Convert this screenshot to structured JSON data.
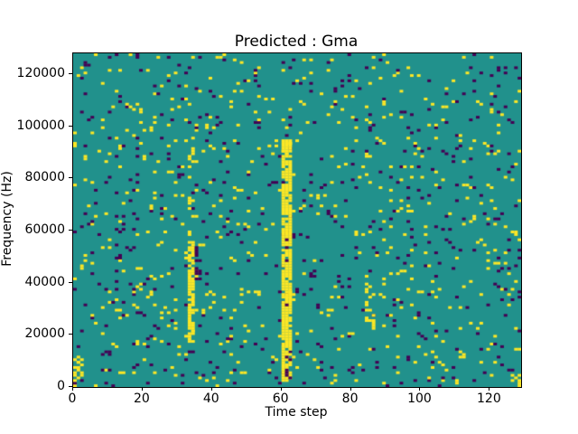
{
  "chart_data": {
    "type": "heatmap",
    "title": "Predicted : Gma",
    "xlabel": "Time step",
    "ylabel": "Frequency (Hz)",
    "xlim": [
      0,
      129
    ],
    "ylim": [
      0,
      128000
    ],
    "nx": 129,
    "ny": 128,
    "axes_rect": [
      80,
      58,
      496,
      369
    ],
    "xticks": [
      0,
      20,
      40,
      60,
      80,
      100,
      120
    ],
    "xtick_labels": [
      "0",
      "20",
      "40",
      "60",
      "80",
      "100",
      "120"
    ],
    "yticks": [
      0,
      20000,
      40000,
      60000,
      80000,
      100000,
      120000
    ],
    "ytick_labels": [
      "0",
      "20000",
      "40000",
      "60000",
      "80000",
      "100000",
      "120000"
    ],
    "legend": "none",
    "grid": "off",
    "colors": {
      "teal": "#21918c",
      "yellow": "#fde725",
      "purple": "#440154",
      "spine": "#000000",
      "text": "#000000",
      "background": "#ffffff"
    },
    "background_value_color": "teal",
    "scatter": {
      "seed": 7,
      "p_yellow": 0.035,
      "p_purple": 0.032,
      "note": "sparse random single-cell yellow and dark-purple cells over teal background"
    },
    "features": [
      {
        "x0": 60,
        "x1": 63,
        "y0": 2000,
        "y1": 95000,
        "color": "yellow",
        "density": 0.85
      },
      {
        "x0": 33,
        "x1": 35,
        "y0": 17000,
        "y1": 56000,
        "color": "yellow",
        "density": 0.8
      },
      {
        "x0": 33,
        "x1": 35,
        "y0": 58000,
        "y1": 92000,
        "color": "yellow",
        "density": 0.2
      },
      {
        "x0": 0,
        "x1": 3,
        "y0": 2000,
        "y1": 11000,
        "color": "yellow",
        "density": 0.55
      },
      {
        "x0": 84,
        "x1": 87,
        "y0": 22000,
        "y1": 40000,
        "color": "yellow",
        "density": 0.35
      },
      {
        "x0": 126,
        "x1": 129,
        "y0": 0,
        "y1": 5000,
        "color": "yellow",
        "density": 0.6
      },
      {
        "x0": 61,
        "x1": 62,
        "y0": 30000,
        "y1": 60000,
        "color": "purple",
        "density": 0.12
      },
      {
        "x0": 35,
        "x1": 37,
        "y0": 40000,
        "y1": 56000,
        "color": "purple",
        "density": 0.45
      },
      {
        "x0": 61,
        "x1": 63,
        "y0": 2000,
        "y1": 12000,
        "color": "purple",
        "density": 0.25
      }
    ]
  }
}
